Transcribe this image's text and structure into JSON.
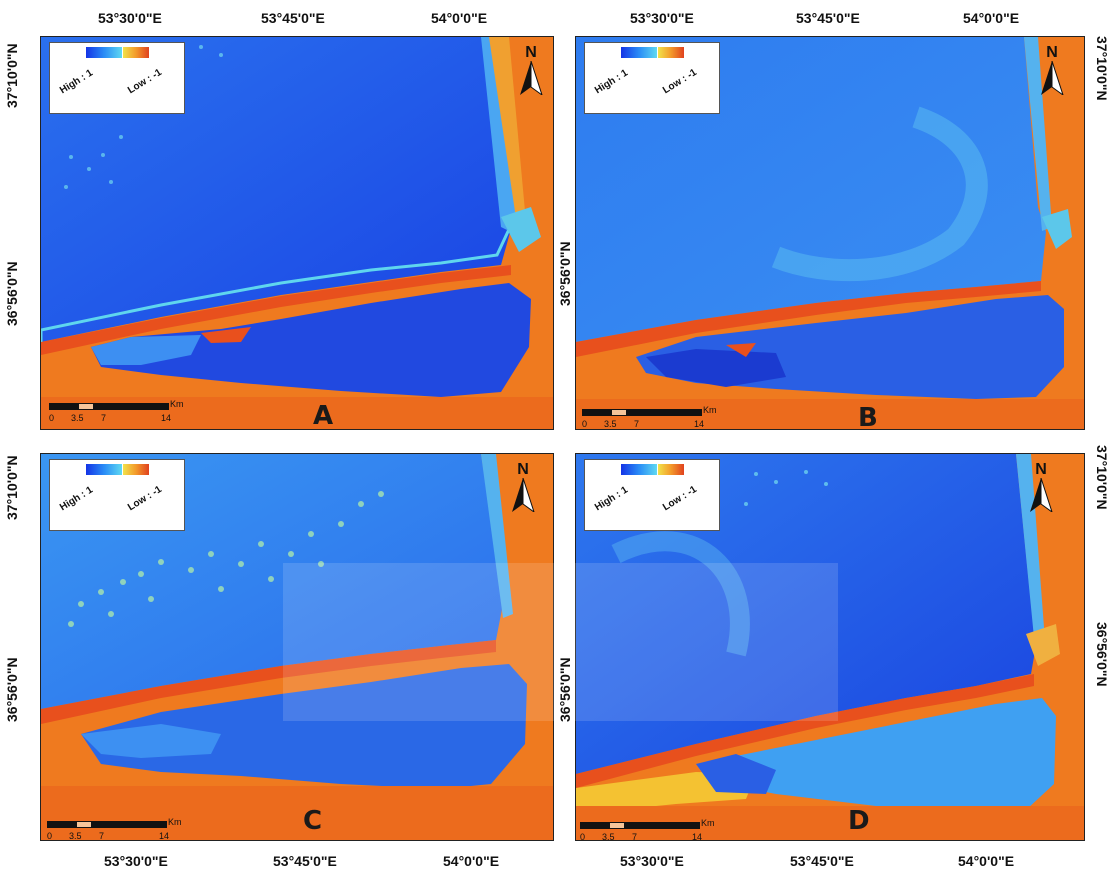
{
  "top_axis": [
    "53°30'0\"E",
    "53°45'0\"E",
    "54°0'0\"E"
  ],
  "bottom_axis": [
    "53°30'0\"E",
    "53°45'0\"E",
    "54°0'0\"E"
  ],
  "left_axis": [
    "37°10'0\"N",
    "36°56'0\"N"
  ],
  "right_axis": [
    "37°10'0\"N",
    "36°56'0\"N"
  ],
  "legend": {
    "high": "High : 1",
    "low": "Low : -1"
  },
  "north_label": "N",
  "scale": {
    "ticks": [
      "0",
      "3.5",
      "7",
      "14"
    ],
    "unit": "Km"
  },
  "panels": [
    {
      "label": "A"
    },
    {
      "label": "B"
    },
    {
      "label": "C"
    },
    {
      "label": "D"
    }
  ],
  "colors": {
    "water_deep": "#1538e0",
    "water_mid": "#2f6ef0",
    "water_light": "#4fb8f4",
    "land": "#f07a1e",
    "land_dark": "#d9401c",
    "land_light": "#f4c232"
  }
}
